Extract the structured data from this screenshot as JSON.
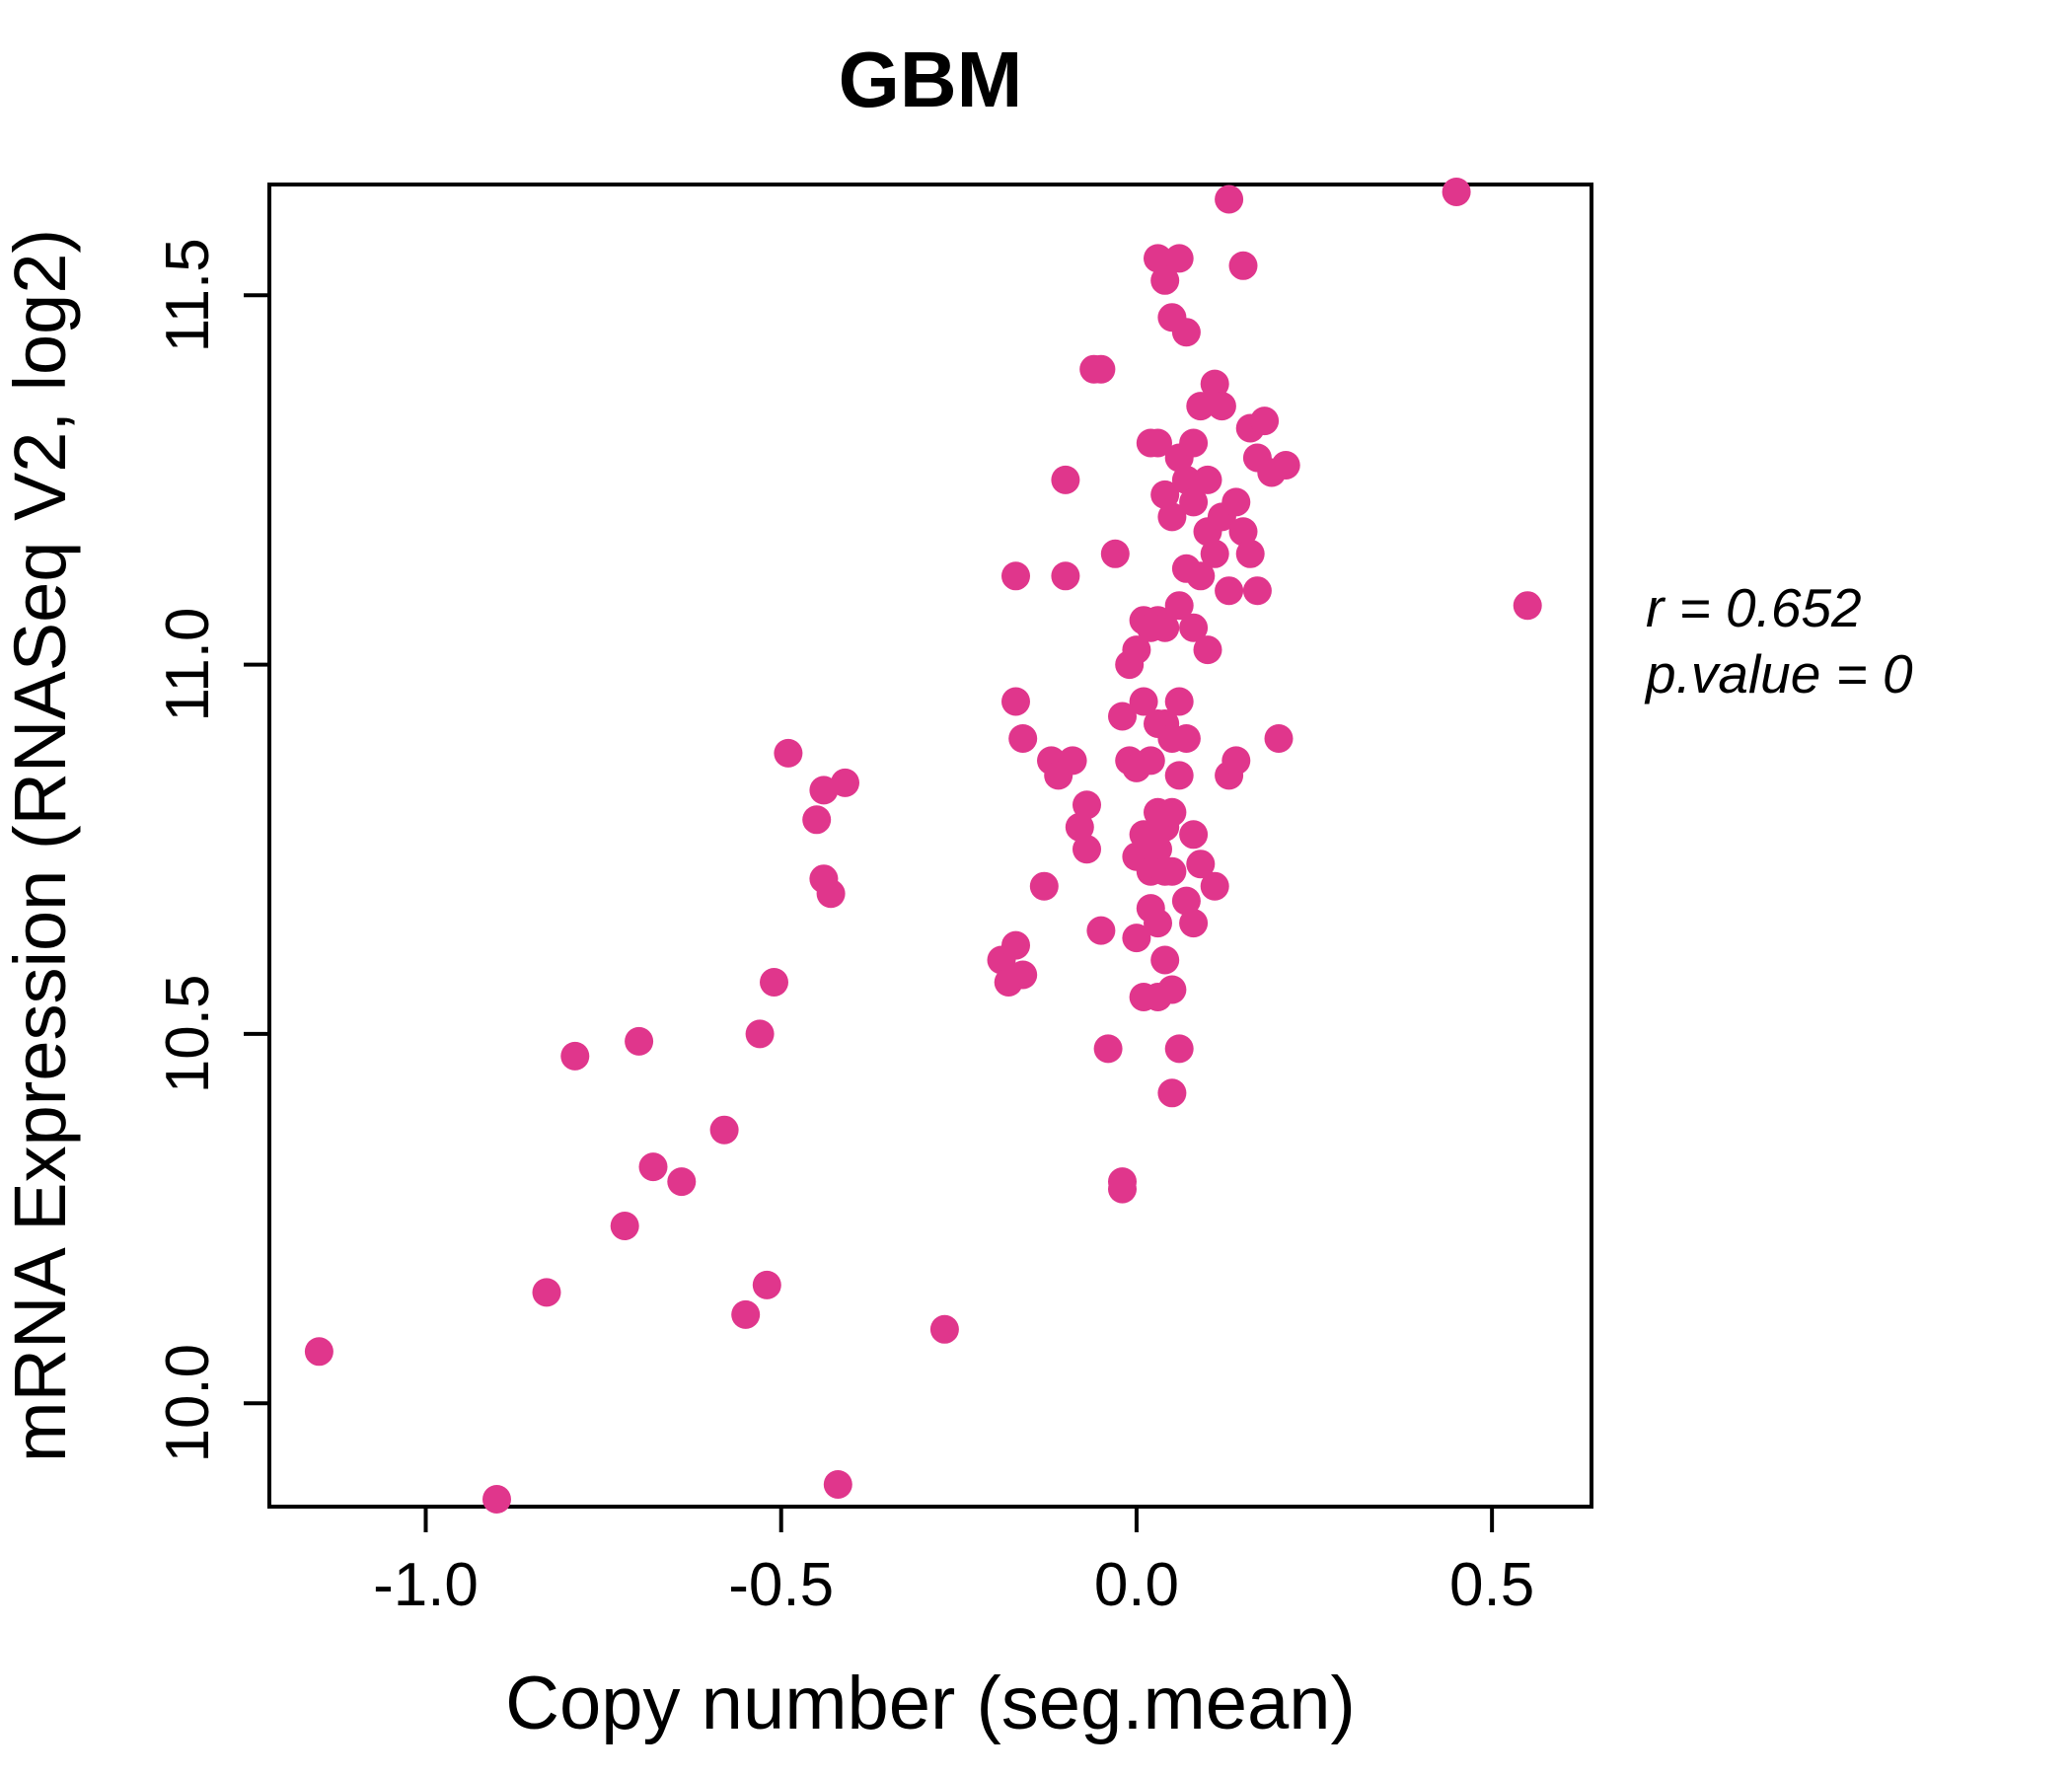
{
  "chart_data": {
    "type": "scatter",
    "title": "GBM",
    "xlabel": "Copy number (seg.mean)",
    "ylabel": "mRNA Expression (RNASeq V2, log2)",
    "xlim": [
      -1.22,
      0.64
    ],
    "ylim": [
      9.86,
      11.65
    ],
    "xticks": [
      -1.0,
      -0.5,
      0.0,
      0.5
    ],
    "yticks": [
      10.0,
      10.5,
      11.0,
      11.5
    ],
    "legend": "none",
    "grid": false,
    "point_color": "#E0368C",
    "title_color": "#E0368C",
    "x": [
      -1.15,
      -0.9,
      -0.83,
      -0.79,
      -0.72,
      -0.7,
      -0.68,
      -0.64,
      -0.58,
      -0.55,
      -0.53,
      -0.52,
      -0.51,
      -0.49,
      -0.45,
      -0.44,
      -0.44,
      -0.43,
      -0.42,
      -0.41,
      -0.27,
      -0.19,
      -0.18,
      -0.17,
      -0.17,
      -0.17,
      -0.16,
      -0.16,
      -0.13,
      -0.12,
      -0.11,
      -0.1,
      -0.1,
      -0.09,
      -0.08,
      -0.07,
      -0.07,
      -0.06,
      -0.05,
      -0.05,
      -0.04,
      -0.03,
      -0.02,
      -0.02,
      -0.02,
      -0.01,
      -0.01,
      0.0,
      0.0,
      0.0,
      0.0,
      0.01,
      0.01,
      0.01,
      0.01,
      0.02,
      0.02,
      0.02,
      0.02,
      0.02,
      0.03,
      0.03,
      0.03,
      0.03,
      0.03,
      0.03,
      0.03,
      0.03,
      0.04,
      0.04,
      0.04,
      0.04,
      0.04,
      0.04,
      0.04,
      0.05,
      0.05,
      0.05,
      0.05,
      0.05,
      0.05,
      0.05,
      0.06,
      0.06,
      0.06,
      0.06,
      0.06,
      0.06,
      0.07,
      0.07,
      0.07,
      0.07,
      0.07,
      0.08,
      0.08,
      0.08,
      0.08,
      0.08,
      0.09,
      0.09,
      0.09,
      0.1,
      0.1,
      0.1,
      0.11,
      0.11,
      0.11,
      0.12,
      0.12,
      0.13,
      0.13,
      0.13,
      0.14,
      0.14,
      0.15,
      0.15,
      0.16,
      0.16,
      0.17,
      0.17,
      0.18,
      0.19,
      0.2,
      0.21,
      0.45,
      0.55
    ],
    "y": [
      10.07,
      9.87,
      10.15,
      10.47,
      10.24,
      10.49,
      10.32,
      10.3,
      10.37,
      10.12,
      10.5,
      10.16,
      10.57,
      10.88,
      10.79,
      10.83,
      10.71,
      10.69,
      9.89,
      10.84,
      10.1,
      10.6,
      10.57,
      10.62,
      10.95,
      11.12,
      10.58,
      10.9,
      10.7,
      10.87,
      10.85,
      11.25,
      11.12,
      10.87,
      10.78,
      10.75,
      10.81,
      11.4,
      11.4,
      10.64,
      10.48,
      11.15,
      10.93,
      10.3,
      10.29,
      11.0,
      10.87,
      10.86,
      11.02,
      10.74,
      10.63,
      11.06,
      10.95,
      10.77,
      10.55,
      11.3,
      11.05,
      10.87,
      10.72,
      10.67,
      11.55,
      11.3,
      11.06,
      10.92,
      10.8,
      10.75,
      10.65,
      10.55,
      11.52,
      11.23,
      11.05,
      10.92,
      10.78,
      10.72,
      10.6,
      11.47,
      11.2,
      10.9,
      10.8,
      10.72,
      10.56,
      10.42,
      11.55,
      11.28,
      11.08,
      10.95,
      10.85,
      10.48,
      11.45,
      11.25,
      11.13,
      10.9,
      10.68,
      11.3,
      11.22,
      11.05,
      10.77,
      10.65,
      11.35,
      11.12,
      10.73,
      11.25,
      11.18,
      11.02,
      11.38,
      11.15,
      10.7,
      11.35,
      11.2,
      11.63,
      11.1,
      10.85,
      11.22,
      10.87,
      11.54,
      11.18,
      11.32,
      11.15,
      11.28,
      11.1,
      11.33,
      11.26,
      10.9,
      11.27,
      11.64,
      11.08
    ]
  },
  "annotation": {
    "line1": "r = 0.652",
    "line2": "p.value = 0"
  }
}
